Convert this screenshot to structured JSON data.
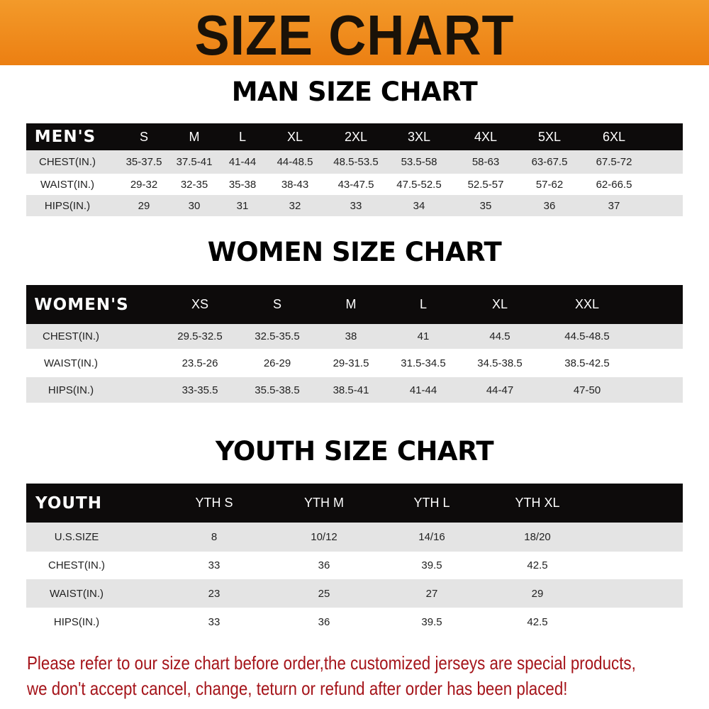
{
  "banner": {
    "title": "SIZE CHART",
    "color": "#ee8518"
  },
  "men": {
    "title": "MAN SIZE CHART",
    "header": [
      "MEN'S",
      "S",
      "M",
      "L",
      "XL",
      "2XL",
      "3XL",
      "4XL",
      "5XL",
      "6XL"
    ],
    "rows": [
      [
        "CHEST(IN.)",
        "35-37.5",
        "37.5-41",
        "41-44",
        "44-48.5",
        "48.5-53.5",
        "53.5-58",
        "58-63",
        "63-67.5",
        "67.5-72"
      ],
      [
        "WAIST(IN.)",
        "29-32",
        "32-35",
        "35-38",
        "38-43",
        "43-47.5",
        "47.5-52.5",
        "52.5-57",
        "57-62",
        "62-66.5"
      ],
      [
        "HIPS(IN.)",
        "29",
        "30",
        "31",
        "32",
        "33",
        "34",
        "35",
        "36",
        "37"
      ]
    ]
  },
  "women": {
    "title": "WOMEN SIZE CHART",
    "header": [
      "WOMEN'S",
      "XS",
      "S",
      "M",
      "L",
      "XL",
      "XXL"
    ],
    "rows": [
      [
        "CHEST(IN.)",
        "29.5-32.5",
        "32.5-35.5",
        "38",
        "41",
        "44.5",
        "44.5-48.5"
      ],
      [
        "WAIST(IN.)",
        "23.5-26",
        "26-29",
        "29-31.5",
        "31.5-34.5",
        "34.5-38.5",
        "38.5-42.5"
      ],
      [
        "HIPS(IN.)",
        "33-35.5",
        "35.5-38.5",
        "38.5-41",
        "41-44",
        "44-47",
        "47-50"
      ]
    ]
  },
  "youth": {
    "title": "YOUTH SIZE CHART",
    "header": [
      "YOUTH",
      "YTH S",
      "YTH M",
      "YTH L",
      "YTH XL"
    ],
    "rows": [
      [
        "U.S.SIZE",
        "8",
        "10/12",
        "14/16",
        "18/20"
      ],
      [
        "CHEST(IN.)",
        "33",
        "36",
        "39.5",
        "42.5"
      ],
      [
        "WAIST(IN.)",
        "23",
        "25",
        "27",
        "29"
      ],
      [
        "HIPS(IN.)",
        "33",
        "36",
        "39.5",
        "42.5"
      ]
    ]
  },
  "notice": {
    "line1": "Please refer to our size chart before order,the customized jerseys are special products,",
    "line2": "we don't accept cancel, change, teturn or refund after order has been placed!",
    "color": "#a5141a"
  }
}
